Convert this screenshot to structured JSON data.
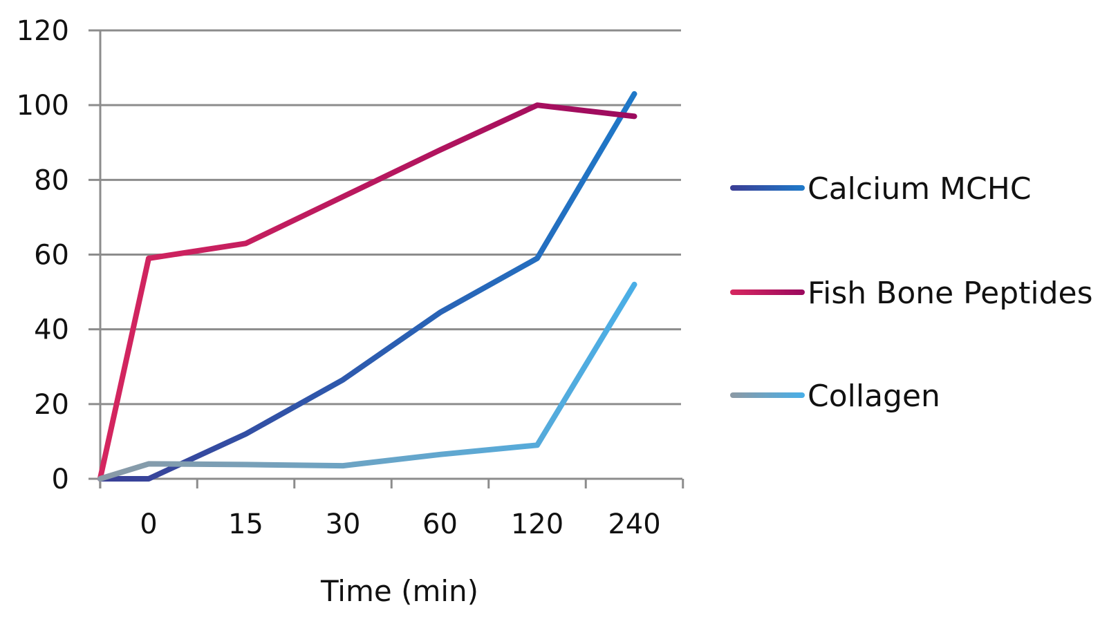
{
  "chart_data": {
    "type": "line",
    "title": "",
    "xlabel": "Time (min)",
    "ylabel": "",
    "categories": [
      "0",
      "15",
      "30",
      "60",
      "120",
      "240"
    ],
    "ylim": [
      0,
      120
    ],
    "yticks": [
      "0",
      "20",
      "40",
      "60",
      "80",
      "100",
      "120"
    ],
    "grid": true,
    "legend_position": "right",
    "series": [
      {
        "name": "Calcium MCHC",
        "color_start": "#3a3f96",
        "color_end": "#1f78c8",
        "points": [
          [
            -0.5,
            0
          ],
          [
            0,
            0
          ],
          [
            1,
            12
          ],
          [
            2,
            26.5
          ],
          [
            3,
            44.5
          ],
          [
            4,
            59
          ],
          [
            5,
            103
          ]
        ]
      },
      {
        "name": "Fish Bone Peptides",
        "color_start": "#d4265f",
        "color_end": "#9c0a5e",
        "points": [
          [
            -0.5,
            0
          ],
          [
            0,
            59
          ],
          [
            1,
            63
          ],
          [
            2,
            75.5
          ],
          [
            3,
            88
          ],
          [
            4,
            100
          ],
          [
            5,
            97
          ]
        ]
      },
      {
        "name": "Collagen",
        "color_start": "#8a9aa6",
        "color_end": "#4aaee6",
        "points": [
          [
            -0.5,
            0
          ],
          [
            0,
            4
          ],
          [
            1,
            3.8
          ],
          [
            2,
            3.5
          ],
          [
            3,
            6.5
          ],
          [
            4,
            9
          ],
          [
            5,
            52
          ]
        ]
      }
    ]
  }
}
